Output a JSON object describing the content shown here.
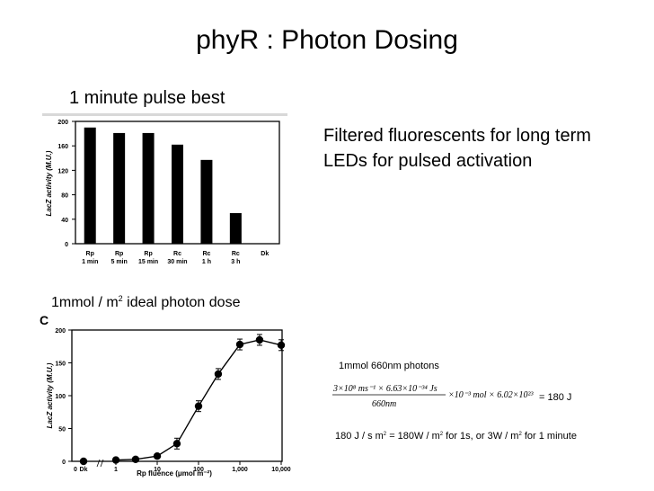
{
  "slide": {
    "title": "phyR : Photon Dosing",
    "pulse_note": "1 minute pulse best",
    "light_lines": [
      "Filtered fluorescents for long term",
      "LEDs for pulsed activation"
    ],
    "dose_note_pre": "1mmol / m",
    "dose_note_exp": "2",
    "dose_note_post": " ideal photon dose"
  },
  "calc": {
    "title": "1mmol 660nm photons",
    "numerator": "3×10⁸ ms⁻¹ × 6.63×10⁻³⁴ Js",
    "denominator": "660nm",
    "factor": "×10⁻³ mol × 6.02×10²³",
    "result": "= 180 J",
    "energy_a": "180 J / s m",
    "energy_exp1": "2",
    "energy_b": " = 180W / m",
    "energy_exp2": "2",
    "energy_c": " for 1s, or 3W / m",
    "energy_exp3": "2",
    "energy_d": " for 1 minute"
  },
  "chart_data": [
    {
      "type": "bar",
      "ylabel": "LacZ activity (M.U.)",
      "ylim": [
        0,
        200
      ],
      "yticks": [
        0,
        40,
        80,
        120,
        160,
        200
      ],
      "categories": [
        [
          "Rp",
          "1 min"
        ],
        [
          "Rp",
          "5 min"
        ],
        [
          "Rp",
          "15 min"
        ],
        [
          "Rc",
          "30 min"
        ],
        [
          "Rc",
          "1 h"
        ],
        [
          "Rc",
          "3 h"
        ],
        [
          "Dk",
          ""
        ]
      ],
      "values": [
        190,
        181,
        181,
        162,
        137,
        50,
        0
      ],
      "grid": false
    },
    {
      "type": "line",
      "panel_label": "C",
      "xlabel": "Rp fluence (μmol m⁻²)",
      "ylabel": "LacZ activity (M.U.)",
      "xscale": "log",
      "ylim": [
        0,
        200
      ],
      "yticks": [
        0,
        50,
        100,
        150,
        200
      ],
      "xtick_labels": [
        "0",
        "Dk",
        "1",
        "10",
        "100",
        "1,000",
        "10,000"
      ],
      "dk_point": {
        "label": "Dk",
        "y": 0
      },
      "x": [
        1,
        3,
        10,
        30,
        100,
        300,
        1000,
        3000,
        10000
      ],
      "y": [
        2,
        3,
        8,
        27,
        84,
        133,
        178,
        185,
        177
      ],
      "grid": false
    }
  ]
}
